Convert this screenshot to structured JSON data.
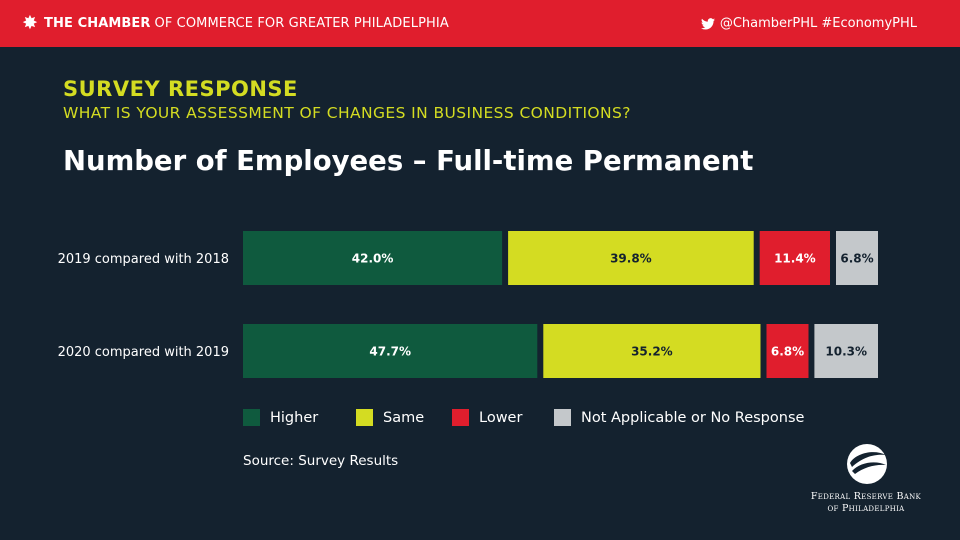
{
  "header": {
    "brand_bold": "THE CHAMBER",
    "brand_rest": "OF COMMERCE FOR GREATER PHILADELPHIA",
    "social": "@ChamberPHL #EconomyPHL",
    "colors": {
      "bar": "#e01e2d"
    }
  },
  "kicker": "SURVEY RESPONSE",
  "question": "WHAT IS YOUR ASSESSMENT OF CHANGES IN BUSINESS CONDITIONS?",
  "source": "Source: Survey Results",
  "fed": {
    "line1": "Federal Reserve Bank",
    "line2": "of Philadelphia"
  },
  "chart_data": {
    "type": "bar",
    "orientation": "horizontal",
    "stacked": true,
    "title": "Number of Employees – Full-time Permanent",
    "categories": [
      "2019 compared with 2018",
      "2020 compared with 2019"
    ],
    "series": [
      {
        "name": "Higher",
        "color": "#0f5a3e",
        "label_color": "#ffffff",
        "values": [
          42.0,
          47.7
        ]
      },
      {
        "name": "Same",
        "color": "#d4dc22",
        "label_color": "#14222f",
        "values": [
          39.8,
          35.2
        ]
      },
      {
        "name": "Lower",
        "color": "#e01e2d",
        "label_color": "#ffffff",
        "values": [
          11.4,
          6.8
        ]
      },
      {
        "name": "Not Applicable or No Response",
        "color": "#c4c8cb",
        "label_color": "#14222f",
        "values": [
          6.8,
          10.3
        ]
      }
    ],
    "value_suffix": "%",
    "legend_position": "bottom",
    "grid": false
  }
}
